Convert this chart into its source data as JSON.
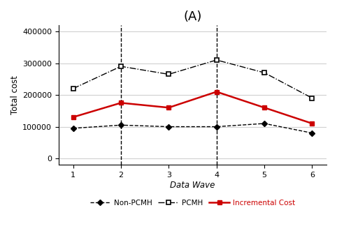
{
  "title": "(A)",
  "xlabel": "Data Wave",
  "ylabel": "Total cost",
  "x": [
    1,
    2,
    3,
    4,
    5,
    6
  ],
  "non_pcmh": [
    95000,
    105000,
    100000,
    100000,
    110000,
    80000
  ],
  "pcmh": [
    220000,
    290000,
    265000,
    310000,
    270000,
    190000
  ],
  "incremental": [
    130000,
    175000,
    160000,
    210000,
    160000,
    110000
  ],
  "non_pcmh_color": "#000000",
  "pcmh_color": "#000000",
  "incremental_color": "#cc0000",
  "vlines": [
    2,
    4
  ],
  "ylim": [
    -20000,
    420000
  ],
  "yticks": [
    0,
    100000,
    200000,
    300000,
    400000
  ],
  "grid_color": "#d0d0d0",
  "bg_color": "#ffffff",
  "legend_labels": [
    "Non-PCMH",
    "PCMH",
    "Incremental Cost"
  ],
  "title_fontsize": 13,
  "label_fontsize": 8.5,
  "tick_fontsize": 8
}
